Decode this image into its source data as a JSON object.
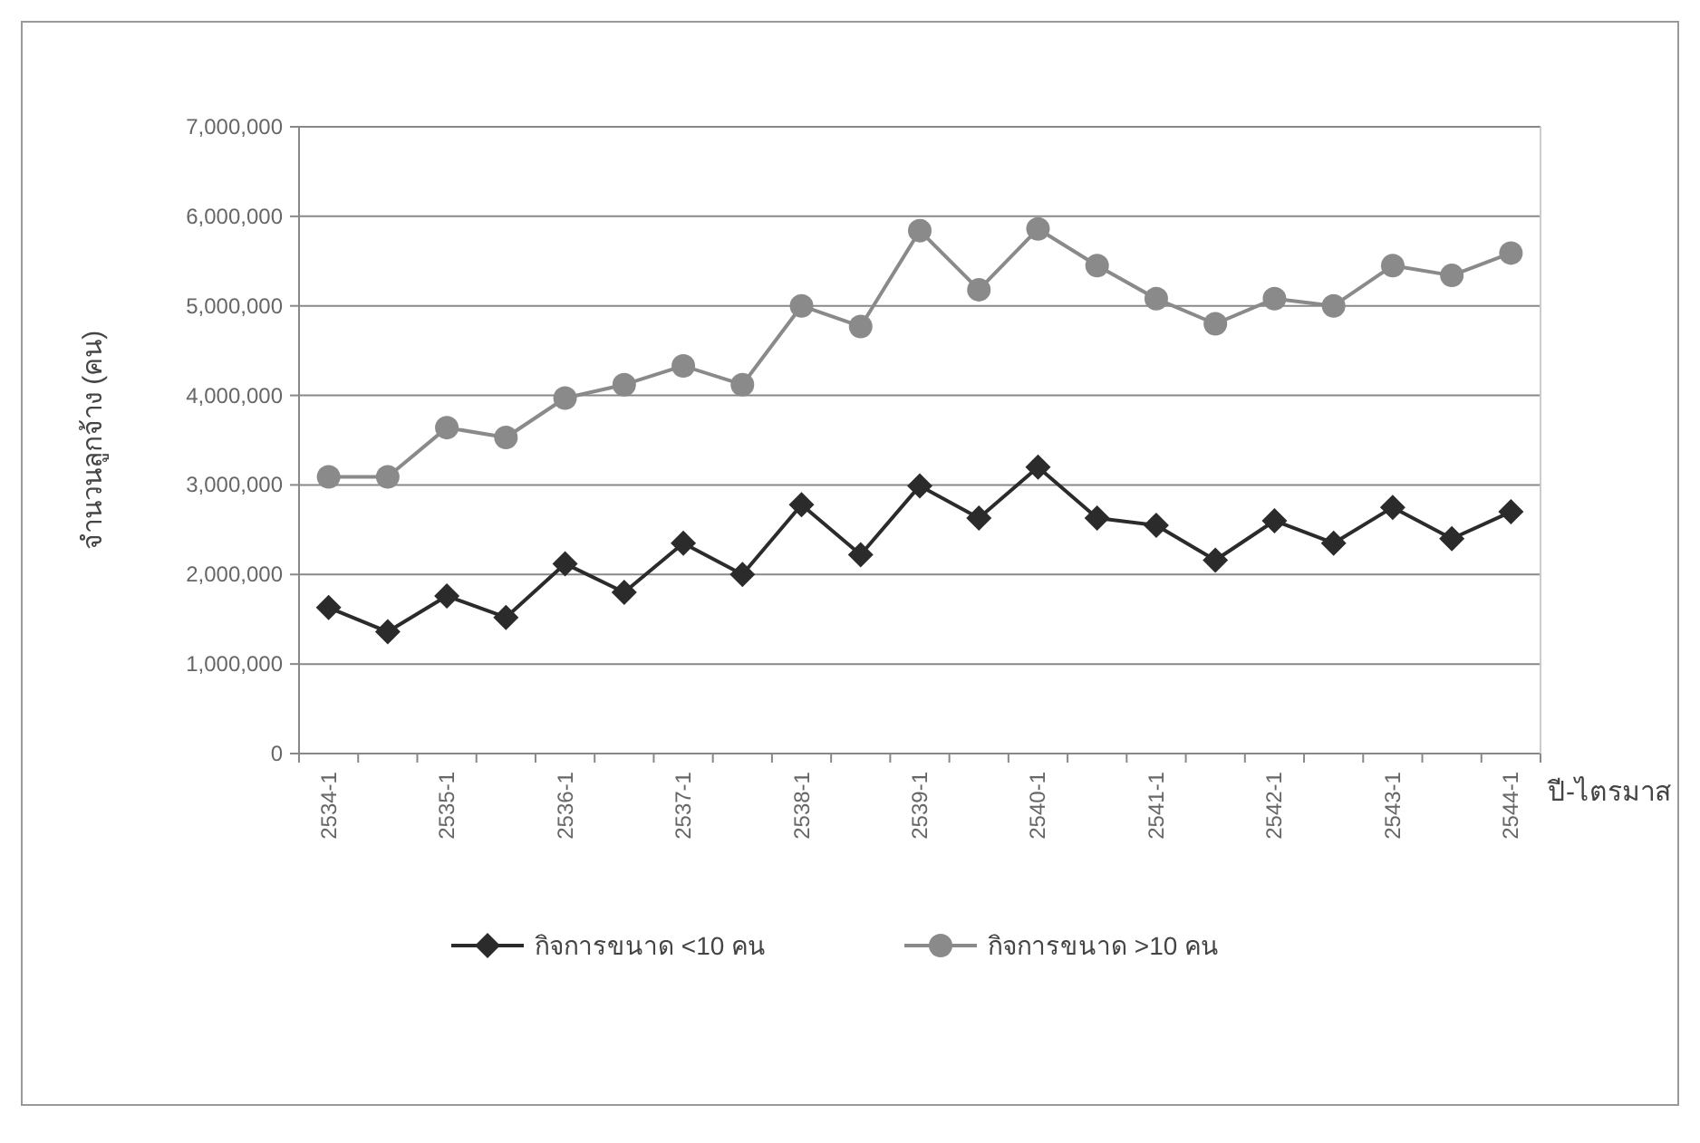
{
  "chart_data": {
    "type": "line",
    "ylabel": "จำนวนลูกจ้าง (คน)",
    "xlabel": "ปี-ไตรมาส",
    "categories": [
      "2534-1",
      null,
      "2535-1",
      null,
      "2536-1",
      null,
      "2537-1",
      null,
      "2538-1",
      null,
      "2539-1",
      null,
      "2540-1",
      null,
      "2541-1",
      null,
      "2542-1",
      null,
      "2543-1",
      null,
      "2544-1"
    ],
    "series": [
      {
        "name": "กิจการขนาด <10 คน",
        "color": "#2b2b2b",
        "marker": "diamond",
        "values": [
          1630000,
          1360000,
          1760000,
          1520000,
          2120000,
          1800000,
          2350000,
          2000000,
          2780000,
          2220000,
          2990000,
          2630000,
          3200000,
          2630000,
          2550000,
          2160000,
          2600000,
          2350000,
          2750000,
          2400000,
          2700000
        ]
      },
      {
        "name": "กิจการขนาด >10 คน",
        "color": "#8a8a8a",
        "marker": "circle",
        "values": [
          3090000,
          3090000,
          3640000,
          3530000,
          3970000,
          4120000,
          4330000,
          4120000,
          5000000,
          4770000,
          5840000,
          5180000,
          5860000,
          5450000,
          5080000,
          4800000,
          5080000,
          5000000,
          5450000,
          5340000,
          5590000
        ]
      }
    ],
    "ylim": [
      0,
      7000000
    ],
    "yticks": [
      0,
      {
        "value": 1000000,
        "label": "1,000,000"
      },
      {
        "value": 2000000,
        "label": "2,000,000"
      },
      {
        "value": 3000000,
        "label": "3,000,000"
      },
      {
        "value": 4000000,
        "label": "4,000,000"
      },
      {
        "value": 5000000,
        "label": "5,000,000"
      },
      {
        "value": 6000000,
        "label": "6,000,000"
      },
      {
        "value": 7000000,
        "label": "7,000,000"
      }
    ],
    "grid": "y",
    "legend": "bottom",
    "line_style": "solid"
  }
}
